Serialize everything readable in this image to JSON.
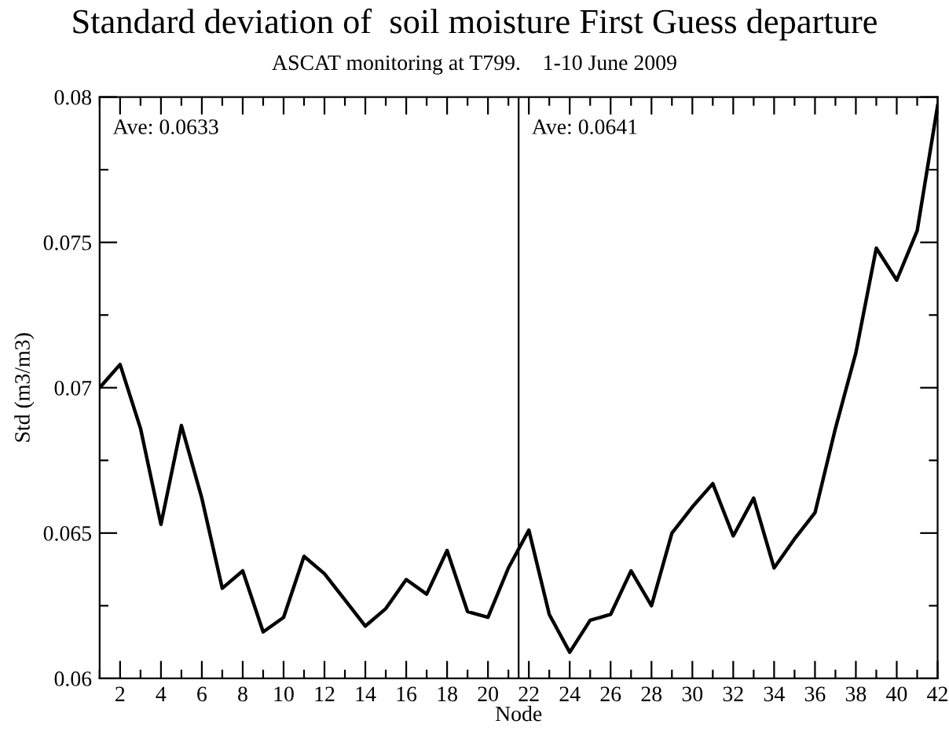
{
  "chart_data": {
    "type": "line",
    "title": "Standard deviation of  soil moisture First Guess departure",
    "subtitle": "ASCAT monitoring at T799.    1-10 June 2009",
    "xlabel": "Node",
    "ylabel": "Std (m3/m3)",
    "x": [
      1,
      2,
      3,
      4,
      5,
      6,
      7,
      8,
      9,
      10,
      11,
      12,
      13,
      14,
      15,
      16,
      17,
      18,
      19,
      20,
      21,
      22,
      23,
      24,
      25,
      26,
      27,
      28,
      29,
      30,
      31,
      32,
      33,
      34,
      35,
      36,
      37,
      38,
      39,
      40,
      41,
      42
    ],
    "series": [
      {
        "color": "#000000",
        "values": [
          0.07,
          0.0708,
          0.0686,
          0.0653,
          0.0687,
          0.0662,
          0.0631,
          0.0637,
          0.0616,
          0.0621,
          0.0642,
          0.0636,
          0.0627,
          0.0618,
          0.0624,
          0.0634,
          0.0629,
          0.0644,
          0.0623,
          0.0621,
          0.0638,
          0.0651,
          0.0622,
          0.0609,
          0.062,
          0.0622,
          0.0637,
          0.0625,
          0.065,
          0.0659,
          0.0667,
          0.0649,
          0.0662,
          0.0638,
          0.0648,
          0.0657,
          0.0686,
          0.0712,
          0.0748,
          0.0737,
          0.0754,
          0.0797
        ]
      }
    ],
    "xlim": [
      1,
      42
    ],
    "xticks": [
      {
        "value": 1,
        "label": null
      },
      2,
      {
        "value": 3,
        "label": null
      },
      4,
      {
        "value": 5,
        "label": null
      },
      6,
      {
        "value": 7,
        "label": null
      },
      8,
      {
        "value": 9,
        "label": null
      },
      10,
      {
        "value": 11,
        "label": null
      },
      12,
      {
        "value": 13,
        "label": null
      },
      14,
      {
        "value": 15,
        "label": null
      },
      16,
      {
        "value": 17,
        "label": null
      },
      18,
      {
        "value": 19,
        "label": null
      },
      20,
      {
        "value": 21,
        "label": null
      },
      22,
      {
        "value": 23,
        "label": null
      },
      24,
      {
        "value": 25,
        "label": null
      },
      26,
      {
        "value": 27,
        "label": null
      },
      28,
      {
        "value": 29,
        "label": null
      },
      30,
      {
        "value": 31,
        "label": null
      },
      32,
      {
        "value": 33,
        "label": null
      },
      34,
      {
        "value": 35,
        "label": null
      },
      36,
      {
        "value": 37,
        "label": null
      },
      38,
      {
        "value": 39,
        "label": null
      },
      40,
      {
        "value": 41,
        "label": null
      },
      42
    ],
    "ylim": [
      0.06,
      0.08
    ],
    "yticks": [
      0.06,
      {
        "value": 0.0625,
        "label": null
      },
      0.065,
      {
        "value": 0.0675,
        "label": null
      },
      0.07,
      {
        "value": 0.0725,
        "label": null
      },
      0.075,
      {
        "value": 0.0775,
        "label": null
      },
      0.08
    ],
    "ref_lines": [
      {
        "axis": "x",
        "value": 21.5,
        "color": "#000000"
      }
    ],
    "annotations": [
      "Ave: 0.0633",
      "Ave: 0.0641"
    ],
    "grid": false,
    "legend": false,
    "marker": "none",
    "line_style": "solid"
  }
}
